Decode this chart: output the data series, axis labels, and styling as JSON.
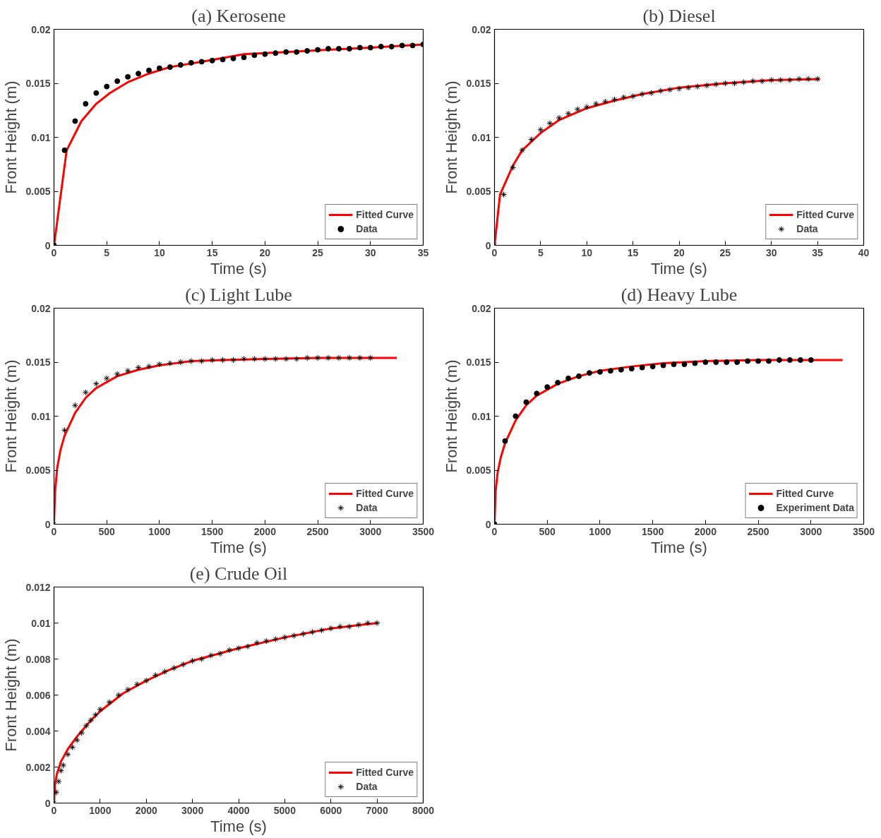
{
  "chart_data": [
    {
      "type": "scatter",
      "title": "(a) Kerosene",
      "xlabel": "Time (s)",
      "ylabel": "Front Height (m)",
      "xlim": [
        0,
        35
      ],
      "ylim": [
        0,
        0.02
      ],
      "xticks": [
        0,
        5,
        10,
        15,
        20,
        25,
        30,
        35
      ],
      "yticks": [
        0,
        0.005,
        0.01,
        0.015,
        0.02
      ],
      "grid": false,
      "legend": "bottom right",
      "series": [
        {
          "name": "Data",
          "marker": "circle",
          "color": "#000000",
          "x": [
            0,
            1,
            2,
            3,
            4,
            5,
            6,
            7,
            8,
            9,
            10,
            11,
            12,
            13,
            14,
            15,
            16,
            17,
            18,
            19,
            20,
            21,
            22,
            23,
            24,
            25,
            26,
            27,
            28,
            29,
            30,
            31,
            32,
            33,
            34,
            35
          ],
          "values": [
            0,
            0.0088,
            0.0115,
            0.0131,
            0.0141,
            0.0147,
            0.0152,
            0.0156,
            0.0159,
            0.0162,
            0.0164,
            0.0165,
            0.0167,
            0.0169,
            0.017,
            0.0171,
            0.0172,
            0.0173,
            0.0174,
            0.0176,
            0.0177,
            0.0178,
            0.0179,
            0.0179,
            0.018,
            0.0181,
            0.0182,
            0.0182,
            0.0182,
            0.0183,
            0.0183,
            0.0184,
            0.0184,
            0.0185,
            0.0185,
            0.0186
          ]
        },
        {
          "name": "Fitted Curve",
          "type": "line",
          "color": "#ff0000",
          "x": [
            0,
            1.2,
            2.6,
            4,
            5.3,
            7,
            9,
            11,
            14,
            18,
            22,
            26,
            30,
            35
          ],
          "values": [
            0,
            0.0088,
            0.0115,
            0.0131,
            0.0141,
            0.0151,
            0.0159,
            0.0165,
            0.017,
            0.0177,
            0.0179,
            0.0181,
            0.0183,
            0.0186
          ]
        }
      ]
    },
    {
      "type": "scatter",
      "title": "(b) Diesel",
      "xlabel": "Time (s)",
      "ylabel": "Front Height (m)",
      "xlim": [
        0,
        40
      ],
      "ylim": [
        0,
        0.02
      ],
      "xticks": [
        0,
        5,
        10,
        15,
        20,
        25,
        30,
        35,
        40
      ],
      "yticks": [
        0,
        0.005,
        0.01,
        0.015,
        0.02
      ],
      "grid": false,
      "legend": "bottom right",
      "series": [
        {
          "name": "Data",
          "marker": "cross",
          "color": "#000000",
          "x": [
            0,
            1,
            2,
            3,
            4,
            5,
            6,
            7,
            8,
            9,
            10,
            11,
            12,
            13,
            14,
            15,
            16,
            17,
            18,
            19,
            20,
            21,
            22,
            23,
            24,
            25,
            26,
            27,
            28,
            29,
            30,
            31,
            32,
            33,
            34,
            35
          ],
          "values": [
            0,
            0.0047,
            0.0072,
            0.0088,
            0.0098,
            0.0107,
            0.0113,
            0.0118,
            0.0122,
            0.0126,
            0.0128,
            0.0131,
            0.0133,
            0.0135,
            0.0137,
            0.0138,
            0.014,
            0.0141,
            0.0143,
            0.0144,
            0.0145,
            0.0146,
            0.0147,
            0.0148,
            0.0149,
            0.015,
            0.015,
            0.0151,
            0.0152,
            0.0152,
            0.0153,
            0.0153,
            0.0153,
            0.0154,
            0.0154,
            0.0154
          ]
        },
        {
          "name": "Fitted Curve",
          "type": "line",
          "color": "#ff0000",
          "x": [
            0,
            0.6,
            2,
            3,
            5,
            7,
            10,
            13,
            16,
            20,
            25,
            30,
            35.2
          ],
          "values": [
            0,
            0.0047,
            0.0074,
            0.0088,
            0.0104,
            0.0116,
            0.0127,
            0.0134,
            0.014,
            0.0146,
            0.015,
            0.0153,
            0.0154
          ]
        }
      ]
    },
    {
      "type": "scatter",
      "title": "(c) Light Lube",
      "xlabel": "Time (s)",
      "ylabel": "Front Height (m)",
      "xlim": [
        0,
        3500
      ],
      "ylim": [
        0,
        0.02
      ],
      "xticks": [
        0,
        500,
        1000,
        1500,
        2000,
        2500,
        3000,
        3500
      ],
      "yticks": [
        0,
        0.005,
        0.01,
        0.015,
        0.02
      ],
      "grid": false,
      "legend": "bottom right",
      "series": [
        {
          "name": "Data",
          "marker": "cross",
          "color": "#000000",
          "x": [
            0,
            100,
            200,
            300,
            400,
            500,
            600,
            700,
            800,
            900,
            1000,
            1100,
            1200,
            1300,
            1400,
            1500,
            1600,
            1700,
            1800,
            1900,
            2000,
            2100,
            2200,
            2300,
            2400,
            2500,
            2600,
            2700,
            2800,
            2900,
            3000
          ],
          "values": [
            0,
            0.0087,
            0.011,
            0.0122,
            0.013,
            0.0135,
            0.0139,
            0.0142,
            0.0145,
            0.0146,
            0.0148,
            0.0149,
            0.015,
            0.0151,
            0.0151,
            0.0152,
            0.0152,
            0.0152,
            0.0153,
            0.0153,
            0.0153,
            0.0153,
            0.0153,
            0.0153,
            0.0154,
            0.0154,
            0.0154,
            0.0154,
            0.0154,
            0.0154,
            0.0154
          ]
        },
        {
          "name": "Fitted Curve",
          "type": "line",
          "color": "#ff0000",
          "x": [
            0,
            10,
            30,
            60,
            100,
            200,
            300,
            400,
            600,
            800,
            1000,
            1300,
            1600,
            2000,
            2500,
            3250
          ],
          "values": [
            0,
            0.003,
            0.0052,
            0.0068,
            0.0082,
            0.0103,
            0.0117,
            0.0126,
            0.0137,
            0.0143,
            0.0147,
            0.0151,
            0.0152,
            0.0153,
            0.0154,
            0.0154
          ]
        }
      ]
    },
    {
      "type": "scatter",
      "title": "(d) Heavy Lube",
      "xlabel": "Time (s)",
      "ylabel": "Front Height (m)",
      "xlim": [
        0,
        3500
      ],
      "ylim": [
        0,
        0.02
      ],
      "xticks": [
        0,
        500,
        1000,
        1500,
        2000,
        2500,
        3000,
        3500
      ],
      "yticks": [
        0,
        0.005,
        0.01,
        0.015,
        0.02
      ],
      "grid": false,
      "legend": "bottom right",
      "series": [
        {
          "name": "Experiment Data",
          "marker": "circle",
          "color": "#000000",
          "x": [
            0,
            100,
            200,
            300,
            400,
            500,
            600,
            700,
            800,
            900,
            1000,
            1100,
            1200,
            1300,
            1400,
            1500,
            1600,
            1700,
            1800,
            1900,
            2000,
            2100,
            2200,
            2300,
            2400,
            2500,
            2600,
            2700,
            2800,
            2900,
            3000
          ],
          "values": [
            0,
            0.0077,
            0.01,
            0.0113,
            0.0121,
            0.0127,
            0.0131,
            0.0135,
            0.0137,
            0.014,
            0.0141,
            0.0142,
            0.0143,
            0.0144,
            0.0145,
            0.0146,
            0.0147,
            0.0148,
            0.0148,
            0.0149,
            0.015,
            0.015,
            0.015,
            0.015,
            0.0151,
            0.0151,
            0.0151,
            0.0152,
            0.0152,
            0.0152,
            0.0152
          ]
        },
        {
          "name": "Fitted Curve",
          "type": "line",
          "color": "#ff0000",
          "x": [
            0,
            10,
            30,
            60,
            100,
            200,
            300,
            400,
            600,
            800,
            1000,
            1300,
            1600,
            2000,
            2500,
            3300
          ],
          "values": [
            0,
            0.003,
            0.0048,
            0.0062,
            0.0075,
            0.0096,
            0.011,
            0.0119,
            0.013,
            0.0137,
            0.0142,
            0.0146,
            0.0149,
            0.0151,
            0.0152,
            0.0152
          ]
        }
      ]
    },
    {
      "type": "scatter",
      "title": "(e) Crude Oil",
      "xlabel": "Time (s)",
      "ylabel": "Front Height (m)",
      "xlim": [
        0,
        8000
      ],
      "ylim": [
        0,
        0.012
      ],
      "xticks": [
        0,
        1000,
        2000,
        3000,
        4000,
        5000,
        6000,
        7000,
        8000
      ],
      "yticks": [
        0,
        0.002,
        0.004,
        0.006,
        0.008,
        0.01,
        0.012
      ],
      "grid": false,
      "legend": "bottom right",
      "series": [
        {
          "name": "Data",
          "marker": "cross",
          "color": "#000000",
          "x": [
            0,
            50,
            100,
            150,
            200,
            300,
            400,
            500,
            600,
            700,
            800,
            900,
            1000,
            1200,
            1400,
            1600,
            1800,
            2000,
            2200,
            2400,
            2600,
            2800,
            3000,
            3200,
            3400,
            3600,
            3800,
            4000,
            4200,
            4400,
            4600,
            4800,
            5000,
            5200,
            5400,
            5600,
            5800,
            6000,
            6200,
            6400,
            6600,
            6800,
            7000
          ],
          "values": [
            0,
            0.0006,
            0.0012,
            0.0018,
            0.0021,
            0.0027,
            0.0031,
            0.0035,
            0.0039,
            0.0043,
            0.0046,
            0.0049,
            0.0052,
            0.0056,
            0.006,
            0.0063,
            0.0066,
            0.0068,
            0.0071,
            0.0073,
            0.0075,
            0.0077,
            0.0079,
            0.008,
            0.0082,
            0.0083,
            0.0085,
            0.0086,
            0.0087,
            0.0089,
            0.009,
            0.0091,
            0.0092,
            0.0093,
            0.0094,
            0.0095,
            0.0096,
            0.0097,
            0.0098,
            0.0098,
            0.0099,
            0.01,
            0.01
          ]
        },
        {
          "name": "Fitted Curve",
          "type": "line",
          "color": "#ff0000",
          "x": [
            0,
            20,
            60,
            150,
            300,
            500,
            800,
            1000,
            1500,
            2000,
            2500,
            3000,
            4000,
            5000,
            6000,
            7000
          ],
          "values": [
            0,
            0.001,
            0.0016,
            0.0023,
            0.003,
            0.0037,
            0.0046,
            0.0051,
            0.0061,
            0.0068,
            0.0074,
            0.0079,
            0.0086,
            0.0092,
            0.0097,
            0.01
          ]
        }
      ]
    }
  ]
}
